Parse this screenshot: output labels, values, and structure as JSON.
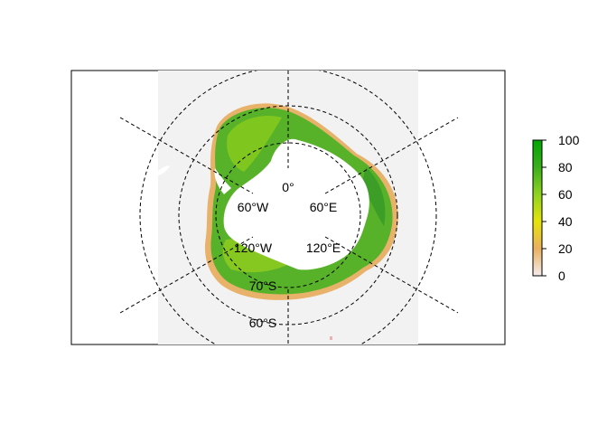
{
  "map": {
    "projection": "polar-stereographic-south",
    "graticule": {
      "meridian_labels": [
        "0°",
        "60°E",
        "120°E",
        "60°W",
        "120°W"
      ],
      "parallel_labels": [
        "70°S",
        "60°S"
      ]
    },
    "colors": {
      "background": "#f2f2f2",
      "continent": "#ffffff",
      "sea_ice_high": "#2ea12a",
      "sea_ice_mid": "#6cc51e",
      "sea_ice_edge": "#e8b26a",
      "graticule_line": "#000000"
    }
  },
  "legend": {
    "ticks": [
      "0",
      "20",
      "40",
      "60",
      "80",
      "100"
    ],
    "colors": [
      "#f2f2f2",
      "#eab05f",
      "#e6e30a",
      "#8ed31f",
      "#3aaf1c",
      "#00a600"
    ],
    "range": [
      0,
      100
    ]
  }
}
